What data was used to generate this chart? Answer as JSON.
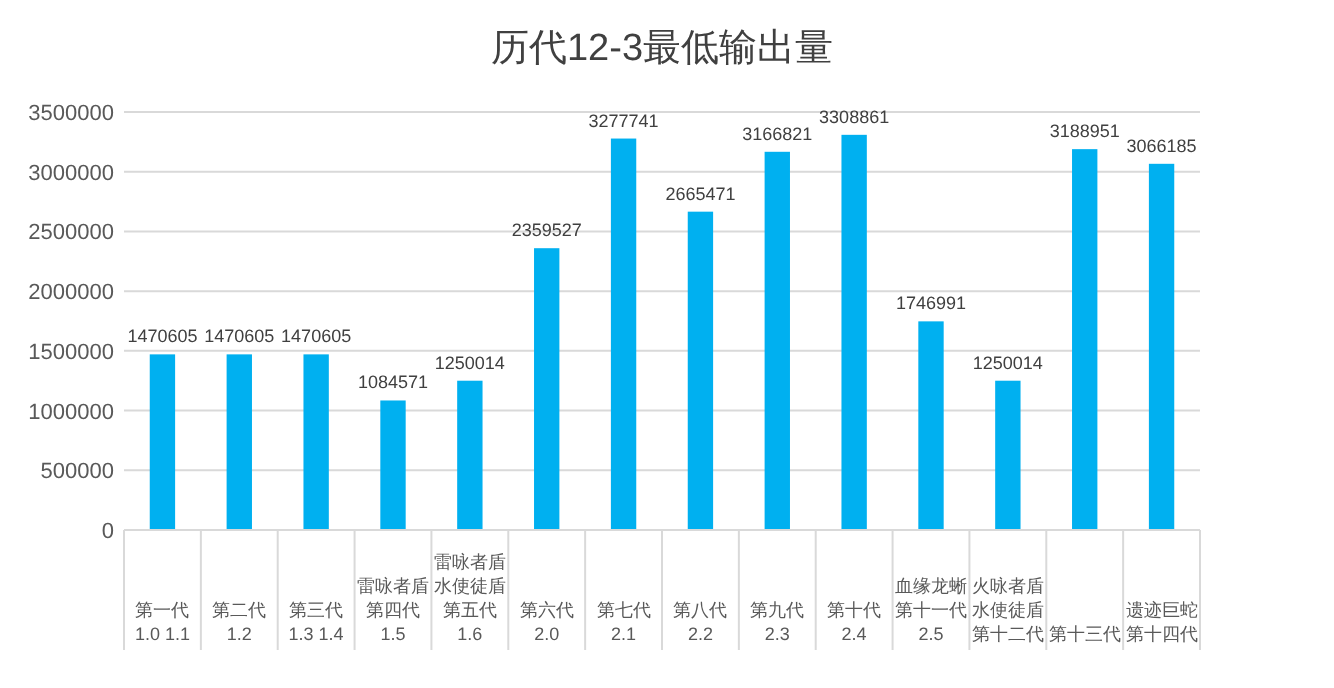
{
  "chart_data": {
    "type": "bar",
    "title": "历代12-3最低输出量",
    "categories": [
      "第一代\n1.0 1.1",
      "第二代\n1.2",
      "第三代\n1.3 1.4",
      "雷咏者盾第四代\n1.5",
      "雷咏者盾水使徒盾第五代\n1.6",
      "第六代\n2.0",
      "第七代\n2.1",
      "第八代\n2.2",
      "第九代\n2.3",
      "第十代\n2.4",
      "血缘龙蜥第十一代\n2.5",
      "火咏者盾水使徒盾第十二代",
      "第十三代",
      "遗迹巨蛇第十四代"
    ],
    "values": [
      1470605,
      1470605,
      1470605,
      1084571,
      1250014,
      2359527,
      3277741,
      2665471,
      3166821,
      3308861,
      1746991,
      1250014,
      3188951,
      3066185
    ],
    "color": "#00b0f0",
    "data_labels": true,
    "grid": "y",
    "ylim": [
      0,
      3500000
    ],
    "yticks": [
      0,
      500000,
      1000000,
      1500000,
      2000000,
      2500000,
      3000000,
      3500000
    ]
  }
}
